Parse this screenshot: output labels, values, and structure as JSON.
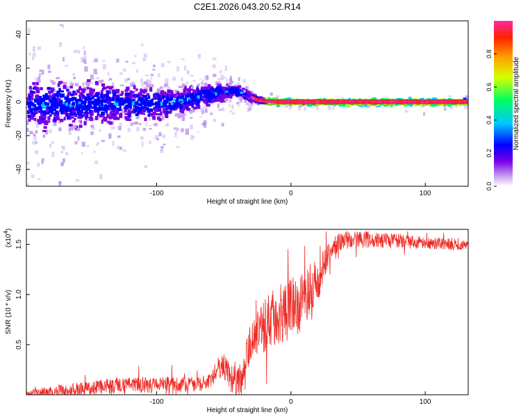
{
  "figure": {
    "title": "C2E1.2026.043.20.52.R14"
  },
  "chart_data": [
    {
      "type": "heatmap",
      "title": "C2E1.2026.043.20.52.R14",
      "xlabel": "Height of straight line (km)",
      "ylabel": "Frequency (Hz)",
      "xlim": [
        -197,
        132
      ],
      "ylim": [
        -50,
        48
      ],
      "xticks": [
        -100,
        0,
        100
      ],
      "xtick_labels": [
        "-100",
        "0",
        "100"
      ],
      "yticks": [
        -40,
        -20,
        0,
        20,
        40
      ],
      "ytick_labels": [
        "-40",
        "-20",
        "0",
        "20",
        "40"
      ],
      "colorbar": {
        "label": "Normalized spectral amplitude",
        "range": [
          0,
          1
        ],
        "ticks": [
          0.0,
          0.2,
          0.4,
          0.6,
          0.8
        ],
        "tick_labels": [
          "0.0",
          "0.2",
          "0.4",
          "0.6",
          "0.8"
        ]
      },
      "ridge_center_hz": [
        {
          "x": -190,
          "y": -2
        },
        {
          "x": -100,
          "y": -1
        },
        {
          "x": -80,
          "y": 1
        },
        {
          "x": -65,
          "y": 4
        },
        {
          "x": -50,
          "y": 6
        },
        {
          "x": -42,
          "y": 7
        },
        {
          "x": -35,
          "y": 4
        },
        {
          "x": -25,
          "y": 1
        },
        {
          "x": -10,
          "y": 0
        },
        {
          "x": 130,
          "y": 0
        }
      ],
      "scatter_spread_hz": [
        {
          "x": -190,
          "y": 10
        },
        {
          "x": -100,
          "y": 7
        },
        {
          "x": -60,
          "y": 4
        },
        {
          "x": -35,
          "y": 2
        },
        {
          "x": -20,
          "y": 1
        },
        {
          "x": 130,
          "y": 1
        }
      ]
    },
    {
      "type": "line",
      "title": "",
      "xlabel": "Height of straight line (km)",
      "ylabel": "SNR (10 * v/v)",
      "multiplier_label": "(x10",
      "multiplier_exp": "4",
      "multiplier_close": ")",
      "xlim": [
        -197,
        132
      ],
      "ylim": [
        0,
        1.65
      ],
      "xticks": [
        -100,
        0,
        100
      ],
      "xtick_labels": [
        "-100",
        "0",
        "100"
      ],
      "yticks": [
        0.5,
        1.0,
        1.5
      ],
      "ytick_labels": [
        "0.5",
        "1.0",
        "1.5"
      ],
      "color": "#ee2a24",
      "baseline": [
        {
          "x": -197,
          "y": 0.01
        },
        {
          "x": -160,
          "y": 0.06
        },
        {
          "x": -130,
          "y": 0.09
        },
        {
          "x": -90,
          "y": 0.1
        },
        {
          "x": -60,
          "y": 0.12
        },
        {
          "x": -55,
          "y": 0.26
        },
        {
          "x": -50,
          "y": 0.3
        },
        {
          "x": -45,
          "y": 0.15
        },
        {
          "x": -40,
          "y": 0.12
        },
        {
          "x": -35,
          "y": 0.18
        },
        {
          "x": -32,
          "y": 0.42
        },
        {
          "x": -25,
          "y": 0.62
        },
        {
          "x": -15,
          "y": 0.75
        },
        {
          "x": -5,
          "y": 0.82
        },
        {
          "x": 5,
          "y": 0.9
        },
        {
          "x": 12,
          "y": 0.96
        },
        {
          "x": 20,
          "y": 1.15
        },
        {
          "x": 28,
          "y": 1.4
        },
        {
          "x": 35,
          "y": 1.52
        },
        {
          "x": 45,
          "y": 1.56
        },
        {
          "x": 70,
          "y": 1.54
        },
        {
          "x": 100,
          "y": 1.52
        },
        {
          "x": 132,
          "y": 1.49
        }
      ],
      "noise_amplitude": [
        {
          "x": -197,
          "y": 0.04
        },
        {
          "x": -130,
          "y": 0.08
        },
        {
          "x": -60,
          "y": 0.08
        },
        {
          "x": -35,
          "y": 0.2
        },
        {
          "x": -10,
          "y": 0.3
        },
        {
          "x": 15,
          "y": 0.3
        },
        {
          "x": 30,
          "y": 0.1
        },
        {
          "x": 132,
          "y": 0.05
        }
      ]
    }
  ]
}
